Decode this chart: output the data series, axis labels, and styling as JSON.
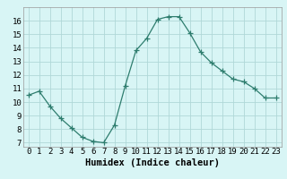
{
  "x": [
    0,
    1,
    2,
    3,
    4,
    5,
    6,
    7,
    8,
    9,
    10,
    11,
    12,
    13,
    14,
    15,
    16,
    17,
    18,
    19,
    20,
    21,
    22,
    23
  ],
  "y": [
    10.5,
    10.8,
    9.7,
    8.8,
    8.1,
    7.4,
    7.1,
    7.0,
    8.3,
    11.2,
    13.8,
    14.7,
    16.1,
    16.3,
    16.3,
    15.1,
    13.7,
    12.9,
    12.3,
    11.7,
    11.5,
    11.0,
    10.3,
    10.3
  ],
  "line_color": "#2e7d6e",
  "marker": "+",
  "marker_size": 4,
  "bg_color": "#d8f5f5",
  "grid_color": "#b0d8d8",
  "xlabel": "Humidex (Indice chaleur)",
  "xlabel_fontsize": 7.5,
  "tick_fontsize": 6.5,
  "xlim": [
    -0.5,
    23.5
  ],
  "ylim": [
    6.7,
    17.0
  ],
  "yticks": [
    7,
    8,
    9,
    10,
    11,
    12,
    13,
    14,
    15,
    16
  ],
  "xticks": [
    0,
    1,
    2,
    3,
    4,
    5,
    6,
    7,
    8,
    9,
    10,
    11,
    12,
    13,
    14,
    15,
    16,
    17,
    18,
    19,
    20,
    21,
    22,
    23
  ]
}
